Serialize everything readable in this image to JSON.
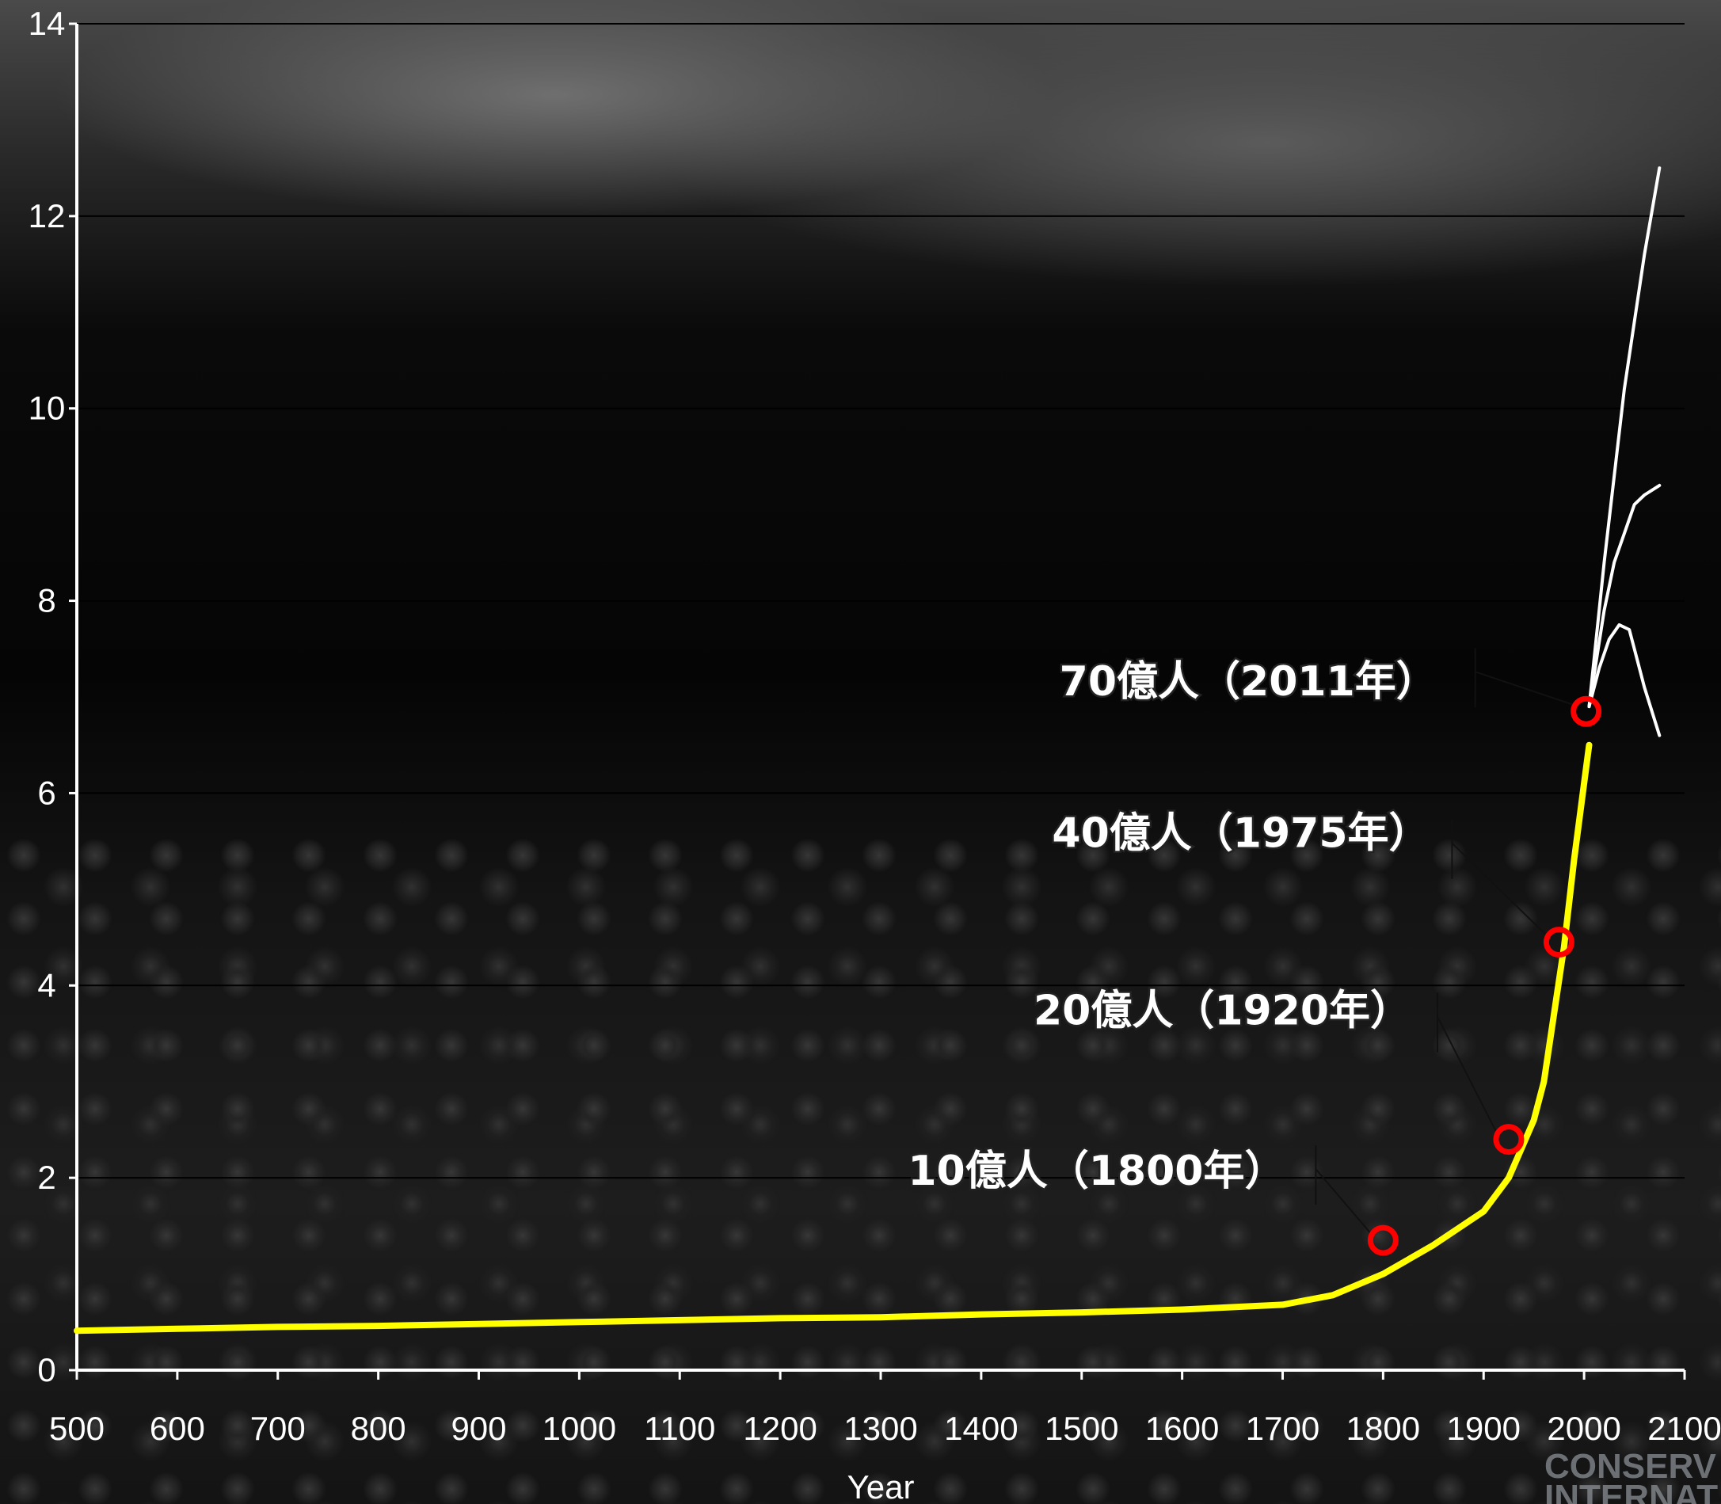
{
  "chart_data": {
    "type": "line",
    "xlabel": "Year",
    "ylabel": "",
    "xlim": [
      500,
      2100
    ],
    "ylim": [
      0,
      14
    ],
    "x_ticks": [
      500,
      600,
      700,
      800,
      900,
      1000,
      1100,
      1200,
      1300,
      1400,
      1500,
      1600,
      1700,
      1800,
      1900,
      2000,
      2100
    ],
    "y_ticks": [
      0,
      2,
      4,
      6,
      8,
      10,
      12,
      14
    ],
    "grid": "horizontal",
    "series": [
      {
        "color": "#ffff00",
        "x": [
          500,
          600,
          700,
          800,
          900,
          1000,
          1100,
          1200,
          1300,
          1400,
          1500,
          1600,
          1700,
          1750,
          1800,
          1850,
          1900,
          1925,
          1950,
          1960,
          1970,
          1980,
          1990,
          2000,
          2005
        ],
        "y": [
          0.41,
          0.43,
          0.45,
          0.46,
          0.48,
          0.5,
          0.52,
          0.54,
          0.55,
          0.58,
          0.6,
          0.63,
          0.68,
          0.78,
          1.0,
          1.3,
          1.65,
          2.0,
          2.6,
          3.0,
          3.7,
          4.4,
          5.3,
          6.1,
          6.5
        ]
      },
      {
        "color": "#ffffff",
        "x": [
          2005,
          2020,
          2040,
          2060,
          2075
        ],
        "y": [
          6.9,
          8.4,
          10.2,
          11.6,
          12.5
        ]
      },
      {
        "color": "#ffffff",
        "x": [
          2005,
          2020,
          2030,
          2040,
          2050,
          2060,
          2075
        ],
        "y": [
          6.9,
          7.9,
          8.4,
          8.7,
          9.0,
          9.1,
          9.2
        ]
      },
      {
        "color": "#ffffff",
        "x": [
          2005,
          2015,
          2025,
          2035,
          2045,
          2050,
          2060,
          2075
        ],
        "y": [
          6.9,
          7.3,
          7.6,
          7.75,
          7.7,
          7.5,
          7.1,
          6.6
        ]
      }
    ],
    "markers": [
      {
        "x": 1800,
        "y": 1.35,
        "label": "10億人（1800年）"
      },
      {
        "x": 1925,
        "y": 2.4,
        "label": "20億人（1920年）"
      },
      {
        "x": 1975,
        "y": 4.45,
        "label": "40億人（1975年）"
      },
      {
        "x": 2002,
        "y": 6.85,
        "label": "70億人（2011年）"
      }
    ]
  },
  "watermark": {
    "line1": "CONSERV",
    "line2": "INTERNAT"
  },
  "colors": {
    "main_line": "#ffff00",
    "projection_lines": "#ffffff",
    "marker": "#ff0000",
    "gridline": "#000000"
  }
}
